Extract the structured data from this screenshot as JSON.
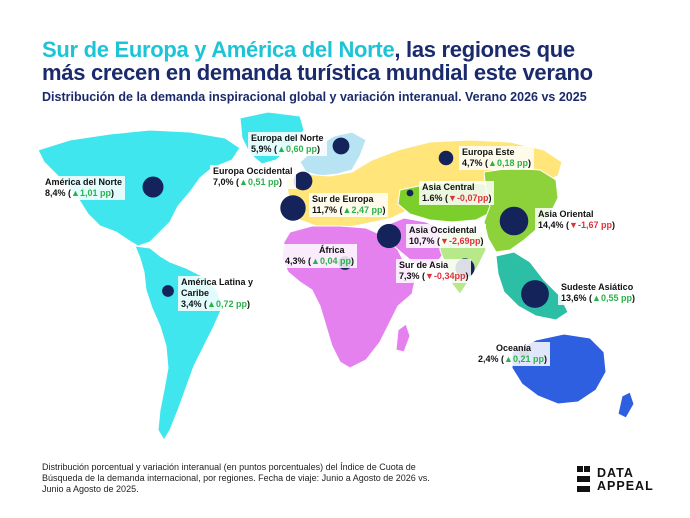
{
  "title": {
    "highlight": "Sur de Europa y América del Norte",
    "rest_line1": ", las regiones que",
    "line2": "más crecen en demanda turística mundial este verano"
  },
  "subtitle": "Distribución de la demanda inspiracional global y variación interanual. Verano 2026 vs 2025",
  "colors": {
    "north_america": "#3fe6ee",
    "latin_america": "#3fe6ee",
    "europe_north": "#b8e3f2",
    "europe": "#ffe57a",
    "africa": "#e580ef",
    "middle_east": "#e580ef",
    "asia_central": "#7ccf2a",
    "asia_east": "#8dd23a",
    "south_asia": "#b7e88a",
    "southeast_asia": "#2dbfa6",
    "oceania": "#2e5fe0",
    "bubble": "#14235a",
    "up": "#2ab24a",
    "down": "#e0313b"
  },
  "regions": [
    {
      "key": "north_america",
      "name": "América del Norte",
      "value": "8,4%",
      "change": "1,01 pp",
      "trend": "up",
      "share": 8.4
    },
    {
      "key": "europe_north",
      "name": "Europa del Norte",
      "value": "5,9%",
      "change": "0,60 pp",
      "trend": "up",
      "share": 5.9
    },
    {
      "key": "europe_west",
      "name": "Europa Occidental",
      "value": "7,0%",
      "change": "0,51 pp",
      "trend": "up",
      "share": 7.0
    },
    {
      "key": "europe_east",
      "name": "Europa Este",
      "value": "4,7%",
      "change": "0,18 pp",
      "trend": "up",
      "share": 4.7
    },
    {
      "key": "europe_south",
      "name": "Sur de Europa",
      "value": "11,7%",
      "change": "2,47 pp",
      "trend": "up",
      "share": 11.7
    },
    {
      "key": "asia_central",
      "name": "Asia Central",
      "value": "1.6%",
      "change": "-0,07pp",
      "trend": "down",
      "share": 1.6
    },
    {
      "key": "asia_east",
      "name": "Asia Oriental",
      "value": "14,4%",
      "change": "-1,67 pp",
      "trend": "down",
      "share": 14.4
    },
    {
      "key": "asia_west",
      "name": "Asia Occidental",
      "value": "10,7%",
      "change": "-2,69pp",
      "trend": "down",
      "share": 10.7
    },
    {
      "key": "africa",
      "name": "África",
      "value": "4,3%",
      "change": "0,04 pp",
      "trend": "up",
      "share": 4.3
    },
    {
      "key": "asia_south",
      "name": "Sur de Asia",
      "value": "7,3%",
      "change": "-0,34pp",
      "trend": "down",
      "share": 7.3
    },
    {
      "key": "latam",
      "name": "América Latina y Caribe",
      "value": "3,4%",
      "change": "0,72 pp",
      "trend": "up",
      "share": 3.4
    },
    {
      "key": "asia_southeast",
      "name": "Sudeste Asiático",
      "value": "13,6%",
      "change": "0,55 pp",
      "trend": "up",
      "share": 13.6
    },
    {
      "key": "oceania",
      "name": "Oceanía",
      "value": "2,4%",
      "change": "0,21 pp",
      "trend": "up",
      "share": 2.4
    }
  ],
  "footer": "Distribución porcentual y variación interanual (en puntos porcentuales) del Índice de Cuota de Búsqueda de la demanda internacional, por regiones. Fecha de viaje: Junio a Agosto de 2026 vs. Junio a Agosto de 2025.",
  "logo": {
    "line1": "DATA",
    "line2": "APPEAL"
  },
  "icons": {
    "up": "▲",
    "down": "▼"
  }
}
